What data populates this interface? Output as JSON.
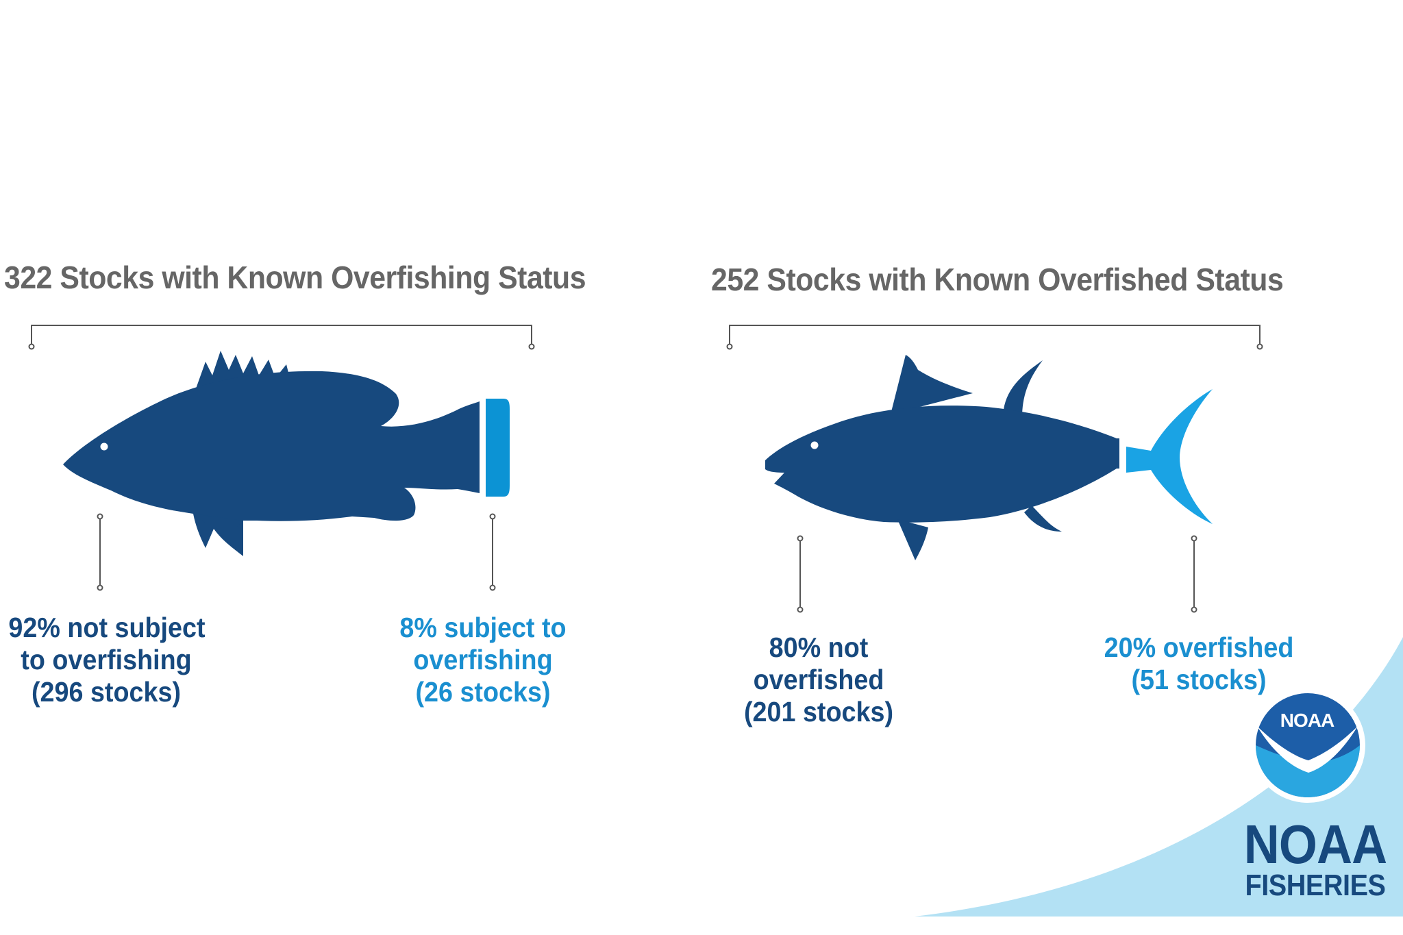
{
  "left_panel": {
    "title": "322 Stocks with Known Overfishing Status",
    "caption_main": {
      "line1": "92% not subject",
      "line2": "to overfishing",
      "line3": "(296 stocks)"
    },
    "caption_highlight": {
      "line1": "8% subject to",
      "line2": "overfishing",
      "line3": "(26 stocks)"
    },
    "highlight_share": 0.08
  },
  "right_panel": {
    "title": "252 Stocks with Known Overfished Status",
    "caption_main": {
      "line1": "80% not",
      "line2": "overfished",
      "line3": "(201 stocks)"
    },
    "caption_highlight": {
      "line1": "20% overfished",
      "line2": "(51 stocks)"
    },
    "highlight_share": 0.2
  },
  "logo": {
    "emblem_text": "NOAA",
    "word1": "NOAA",
    "word2": "FISHERIES"
  },
  "colors": {
    "dark_blue": "#17497e",
    "light_blue": "#1a8fd0",
    "title_gray": "#666666",
    "corner_light_blue": "#b3e1f4"
  },
  "icons": {
    "left_fish": "grouper-fish-icon",
    "right_fish": "tuna-fish-icon",
    "logo_emblem": "noaa-seagull-emblem-icon"
  }
}
